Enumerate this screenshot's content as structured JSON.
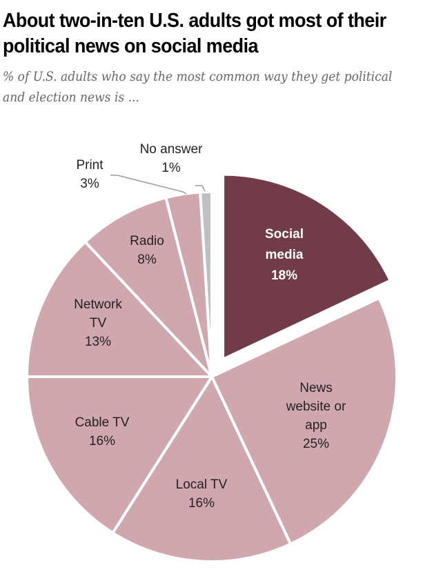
{
  "chart_data": {
    "type": "pie",
    "title": "About two-in-ten U.S. adults got most of their political news on social media",
    "subtitle": "% of U.S. adults who say the most common way they get political and election news is ...",
    "slices": [
      {
        "label": [
          "Social",
          "media"
        ],
        "value": 18,
        "value_label": "18%",
        "color": "#713c47",
        "exploded": true
      },
      {
        "label": [
          "News",
          "website or",
          "app"
        ],
        "value": 25,
        "value_label": "25%",
        "color": "#d1a7ae"
      },
      {
        "label": [
          "Local TV"
        ],
        "value": 16,
        "value_label": "16%",
        "color": "#d1a7ae"
      },
      {
        "label": [
          "Cable TV"
        ],
        "value": 16,
        "value_label": "16%",
        "color": "#d1a7ae"
      },
      {
        "label": [
          "Network",
          "TV"
        ],
        "value": 13,
        "value_label": "13%",
        "color": "#d1a7ae"
      },
      {
        "label": [
          "Radio"
        ],
        "value": 8,
        "value_label": "8%",
        "color": "#d1a7ae"
      },
      {
        "label": [
          "Print"
        ],
        "value": 3,
        "value_label": "3%",
        "color": "#d1a7ae"
      },
      {
        "label": [
          "No answer"
        ],
        "value": 1,
        "value_label": "1%",
        "color": "#bfbfbf"
      }
    ]
  }
}
